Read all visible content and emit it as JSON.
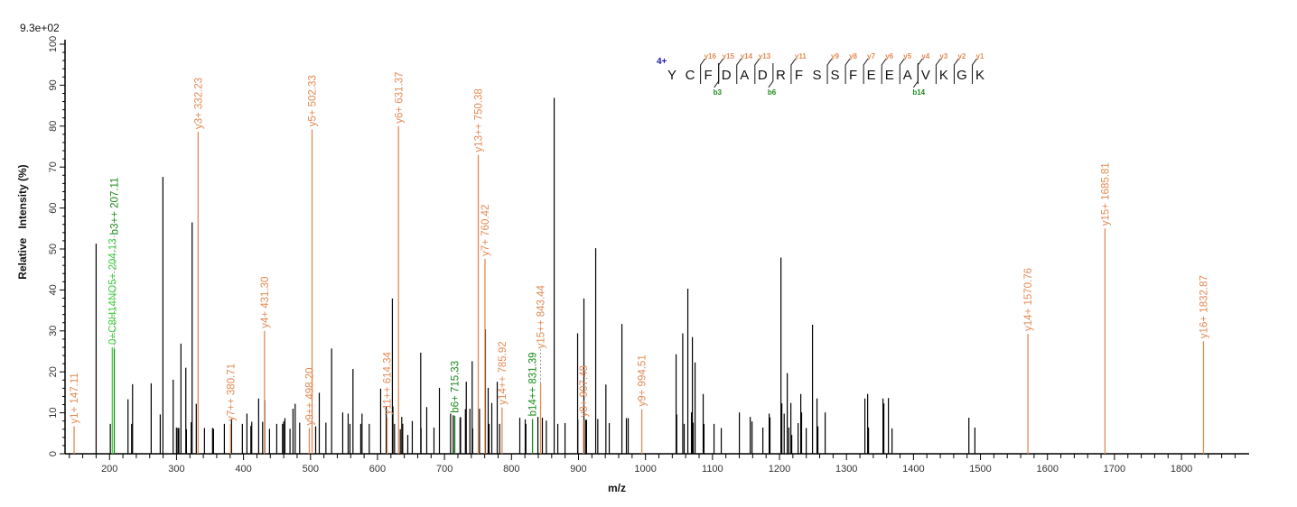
{
  "chart_data": {
    "type": "bar",
    "subtype": "mass-spectrum-sticks",
    "max_intensity_label": "9.3e+02",
    "xlabel": "m/z",
    "ylabel": "Relative   Intensity (%)",
    "xlim": [
      133.6,
      1901
    ],
    "ylim": [
      0,
      100
    ],
    "x_ticks": [
      200,
      300,
      400,
      500,
      600,
      700,
      800,
      900,
      1000,
      1100,
      1200,
      1300,
      1400,
      1500,
      1600,
      1700,
      1800
    ],
    "y_ticks": [
      0,
      10,
      20,
      30,
      40,
      50,
      60,
      70,
      80,
      90,
      100
    ],
    "grid": false,
    "colors": {
      "unassigned": "#000000",
      "y_ion": "#e38a55",
      "b_ion": "#1a8a1a",
      "other_ion": "#3ad23a",
      "charge": "#1c1cb0"
    },
    "unassigned_peaks": [
      [
        180,
        51.3
      ],
      [
        201.2,
        7.3
      ],
      [
        227.6,
        13.3
      ],
      [
        233,
        7.3
      ],
      [
        234.4,
        17
      ],
      [
        262.2,
        17.2
      ],
      [
        275.7,
        9.6
      ],
      [
        279.7,
        67.6
      ],
      [
        295,
        18.1
      ],
      [
        299.9,
        6.4
      ],
      [
        302,
        6.3
      ],
      [
        303.5,
        6.3
      ],
      [
        306.6,
        26.9
      ],
      [
        313.9,
        21
      ],
      [
        314.8,
        6
      ],
      [
        321.9,
        7.7
      ],
      [
        323.3,
        56.5
      ],
      [
        329.5,
        12.2
      ],
      [
        341.7,
        6.3
      ],
      [
        353.8,
        6.3
      ],
      [
        355.2,
        6.1
      ],
      [
        371.4,
        7.3
      ],
      [
        382.1,
        8.6
      ],
      [
        398.3,
        7.3
      ],
      [
        405.1,
        9.8
      ],
      [
        411,
        6.8
      ],
      [
        412.3,
        7.8
      ],
      [
        422.6,
        13.5
      ],
      [
        428.5,
        7.8
      ],
      [
        431.7,
        13.1
      ],
      [
        438.8,
        6.1
      ],
      [
        449.6,
        7.3
      ],
      [
        458.2,
        7.3
      ],
      [
        460,
        7.9
      ],
      [
        461.8,
        8.7
      ],
      [
        469.4,
        6.1
      ],
      [
        473.9,
        11
      ],
      [
        477.1,
        12.2
      ],
      [
        483.8,
        7.6
      ],
      [
        507.7,
        6.7
      ],
      [
        513.1,
        14.9
      ],
      [
        523,
        7.6
      ],
      [
        531.5,
        25.7
      ],
      [
        548.1,
        10.1
      ],
      [
        556.2,
        9.8
      ],
      [
        558.9,
        7.3
      ],
      [
        563.4,
        20.7
      ],
      [
        575,
        7.3
      ],
      [
        576.9,
        9.8
      ],
      [
        587.7,
        7.3
      ],
      [
        604.7,
        15.9
      ],
      [
        613,
        11.6
      ],
      [
        622.2,
        37.9
      ],
      [
        623,
        11.6
      ],
      [
        625.4,
        7.3
      ],
      [
        634,
        6
      ],
      [
        636.2,
        9
      ],
      [
        637.6,
        7.3
      ],
      [
        645.2,
        4.6
      ],
      [
        651.9,
        8
      ],
      [
        664.5,
        24.7
      ],
      [
        665,
        6.3
      ],
      [
        673.5,
        11.4
      ],
      [
        684.3,
        6.4
      ],
      [
        692.4,
        16.1
      ],
      [
        709.1,
        9.8
      ],
      [
        713.1,
        9.4
      ],
      [
        723.2,
        8.7
      ],
      [
        724,
        9
      ],
      [
        731.2,
        10.9
      ],
      [
        732.5,
        17.6
      ],
      [
        737.9,
        11
      ],
      [
        741.3,
        22.6
      ],
      [
        742,
        6.2
      ],
      [
        752.2,
        11
      ],
      [
        761.1,
        30.4
      ],
      [
        765.2,
        16.1
      ],
      [
        766.5,
        7.3
      ],
      [
        770.6,
        12.4
      ],
      [
        778.7,
        17.6
      ],
      [
        782.3,
        7.3
      ],
      [
        812.4,
        8.8
      ],
      [
        820.5,
        8.4
      ],
      [
        821.5,
        7.3
      ],
      [
        839.4,
        9
      ],
      [
        846.1,
        8.8
      ],
      [
        852,
        8.1
      ],
      [
        863.7,
        86.9
      ],
      [
        869.1,
        7.3
      ],
      [
        879.9,
        7.5
      ],
      [
        898.7,
        29.4
      ],
      [
        899,
        8.3
      ],
      [
        908.1,
        37.9
      ],
      [
        910.5,
        8.3
      ],
      [
        912,
        8.3
      ],
      [
        925.7,
        50.2
      ],
      [
        928.8,
        8.5
      ],
      [
        940.9,
        16.9
      ],
      [
        945.9,
        7.5
      ],
      [
        964.8,
        31.7
      ],
      [
        971.5,
        8.7
      ],
      [
        974.2,
        8.7
      ],
      [
        1045.7,
        24.3
      ],
      [
        1046.6,
        9.6
      ],
      [
        1055.6,
        29.4
      ],
      [
        1057.8,
        7.3
      ],
      [
        1063.2,
        40.3
      ],
      [
        1068.6,
        10.1
      ],
      [
        1070,
        28.5
      ],
      [
        1071.2,
        7.6
      ],
      [
        1074,
        22.3
      ],
      [
        1086.1,
        14.6
      ],
      [
        1087.3,
        7.3
      ],
      [
        1102.3,
        7.3
      ],
      [
        1113.1,
        6.3
      ],
      [
        1140.1,
        10.1
      ],
      [
        1156.3,
        9
      ],
      [
        1159,
        7.9
      ],
      [
        1175.2,
        6.4
      ],
      [
        1184.6,
        9.8
      ],
      [
        1185.8,
        8.9
      ],
      [
        1202.2,
        47.9
      ],
      [
        1203.5,
        12.3
      ],
      [
        1207,
        9.8
      ],
      [
        1211.6,
        19.7
      ],
      [
        1214,
        6.4
      ],
      [
        1217,
        12.4
      ],
      [
        1218.3,
        4.6
      ],
      [
        1227.8,
        7.5
      ],
      [
        1231.8,
        14.6
      ],
      [
        1233,
        10.1
      ],
      [
        1239.9,
        6.3
      ],
      [
        1249.3,
        31.5
      ],
      [
        1256,
        13.5
      ],
      [
        1257.3,
        6.7
      ],
      [
        1268.2,
        10.1
      ],
      [
        1327.5,
        13.5
      ],
      [
        1331.6,
        14.6
      ],
      [
        1332.9,
        6.4
      ],
      [
        1354.5,
        13.5
      ],
      [
        1355.8,
        12.3
      ],
      [
        1362.6,
        13.6
      ],
      [
        1368,
        6.2
      ],
      [
        1482.7,
        8.8
      ],
      [
        1491.7,
        6.4
      ]
    ],
    "annotated_peaks": [
      {
        "label": "y1+ 147.11",
        "mz": 147.11,
        "intensity": 6.7,
        "ion": "y_ion"
      },
      {
        "label": "0+C8H14NO5+ 204.13",
        "mz": 204.13,
        "intensity": 26,
        "ion": "other_ion"
      },
      {
        "label": "b3++ 207.11",
        "mz": 207.11,
        "intensity": 25.6,
        "ion": "b_ion"
      },
      {
        "label": "y3+ 332.23",
        "mz": 332.23,
        "intensity": 78.6,
        "ion": "y_ion"
      },
      {
        "label": "y7++ 380.71",
        "mz": 380.71,
        "intensity": 7.3,
        "ion": "y_ion"
      },
      {
        "label": "y4+ 431.30",
        "mz": 431.3,
        "intensity": 30,
        "ion": "y_ion"
      },
      {
        "label": "y9++ 498.20",
        "mz": 498.2,
        "intensity": 6.3,
        "ion": "y_ion"
      },
      {
        "label": "y5+ 502.33",
        "mz": 502.33,
        "intensity": 79.2,
        "ion": "y_ion"
      },
      {
        "label": "y11++ 614.34",
        "mz": 614.34,
        "intensity": 8.9,
        "ion": "y_ion"
      },
      {
        "label": "y6+ 631.37",
        "mz": 631.37,
        "intensity": 80,
        "ion": "y_ion"
      },
      {
        "label": "b6+ 715.33",
        "mz": 715.33,
        "intensity": 9.3,
        "ion": "b_ion"
      },
      {
        "label": "y13++ 750.38",
        "mz": 750.38,
        "intensity": 73,
        "ion": "y_ion"
      },
      {
        "label": "y7+ 760.42",
        "mz": 760.42,
        "intensity": 47.6,
        "ion": "y_ion"
      },
      {
        "label": "y14++ 785.92",
        "mz": 785.92,
        "intensity": 11.3,
        "ion": "y_ion"
      },
      {
        "label": "b14++ 831.39",
        "mz": 831.39,
        "intensity": 8.5,
        "ion": "b_ion"
      },
      {
        "label": "y15++ 843.44",
        "mz": 843.44,
        "intensity": 17.2,
        "ion": "y_ion"
      },
      {
        "label": "y8+ 907.48",
        "mz": 907.48,
        "intensity": 8.3,
        "ion": "y_ion"
      },
      {
        "label": "y9+ 994.51",
        "mz": 994.51,
        "intensity": 10.9,
        "ion": "y_ion"
      },
      {
        "label": "y14+ 1570.76",
        "mz": 1570.76,
        "intensity": 29.3,
        "ion": "y_ion"
      },
      {
        "label": "y15+ 1685.81",
        "mz": 1685.81,
        "intensity": 55,
        "ion": "y_ion"
      },
      {
        "label": "y16+ 1832.87",
        "mz": 1832.87,
        "intensity": 27.5,
        "ion": "y_ion"
      }
    ]
  },
  "sequence": {
    "charge": "4+",
    "residues": [
      "Y",
      "C",
      "F",
      "D",
      "A",
      "D",
      "R",
      "F",
      "S",
      "S",
      "F",
      "E",
      "E",
      "A",
      "V",
      "K",
      "G",
      "K"
    ],
    "y_fragments": [
      {
        "before_index": 2,
        "label": "y16"
      },
      {
        "before_index": 3,
        "label": "y15"
      },
      {
        "before_index": 4,
        "label": "y14"
      },
      {
        "before_index": 5,
        "label": "y13"
      },
      {
        "before_index": 7,
        "label": "y11"
      },
      {
        "before_index": 9,
        "label": "y9"
      },
      {
        "before_index": 10,
        "label": "y8"
      },
      {
        "before_index": 11,
        "label": "y7"
      },
      {
        "before_index": 12,
        "label": "y6"
      },
      {
        "before_index": 13,
        "label": "y5"
      },
      {
        "before_index": 14,
        "label": "y4"
      },
      {
        "before_index": 15,
        "label": "y3"
      },
      {
        "before_index": 16,
        "label": "y2"
      },
      {
        "before_index": 17,
        "label": "y1"
      }
    ],
    "b_fragments": [
      {
        "before_index": 3,
        "label": "b3"
      },
      {
        "before_index": 6,
        "label": "b6"
      },
      {
        "before_index": 14,
        "label": "b14"
      }
    ]
  }
}
